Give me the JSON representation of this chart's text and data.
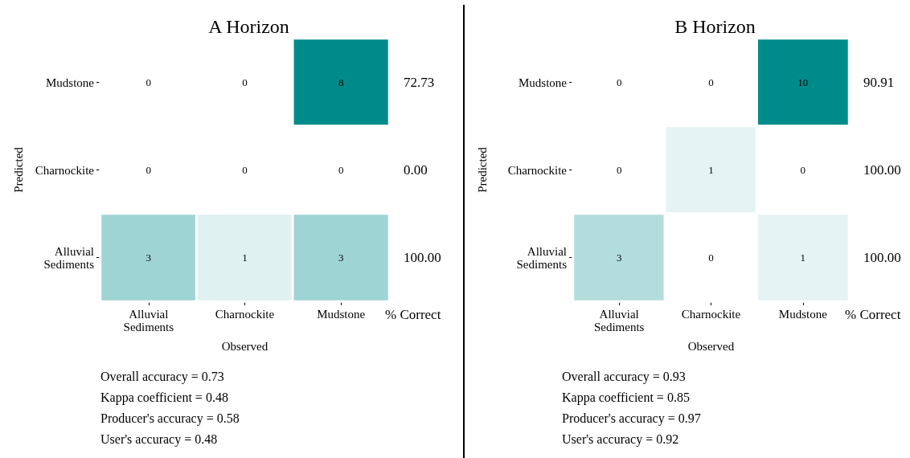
{
  "chart_data": [
    {
      "type": "heatmap",
      "title": "A Horizon",
      "xlabel": "Observed",
      "ylabel": "Predicted",
      "y2label": "% Correct",
      "color": "#008b8b",
      "categories": [
        "Alluvial\nSediments",
        "Charnockite",
        "Mudstone"
      ],
      "y_categories": [
        "Mudstone",
        "Charnockite",
        "Alluvial\nSediments"
      ],
      "y2_categories": [
        "72.73",
        "0.00",
        "100.00"
      ],
      "cells": [
        [
          0,
          0,
          8
        ],
        [
          0,
          0,
          0
        ],
        [
          3,
          1,
          3
        ]
      ],
      "data_labels": true,
      "annotations": [
        "Overall accuracy = 0.73",
        "Kappa coefficient = 0.48",
        "Producer's accuracy = 0.58",
        "User's accuracy = 0.48"
      ]
    },
    {
      "type": "heatmap",
      "title": "B Horizon",
      "xlabel": "Observed",
      "ylabel": "Predicted",
      "y2label": "% Correct",
      "color": "#008b8b",
      "categories": [
        "Alluvial\nSediments",
        "Charnockite",
        "Mudstone"
      ],
      "y_categories": [
        "Mudstone",
        "Charnockite",
        "Alluvial\nSediments"
      ],
      "y2_categories": [
        "90.91",
        "100.00",
        "100.00"
      ],
      "cells": [
        [
          0,
          0,
          10
        ],
        [
          0,
          1,
          0
        ],
        [
          3,
          0,
          1
        ]
      ],
      "data_labels": true,
      "annotations": [
        "Overall accuracy = 0.93",
        "Kappa coefficient = 0.85",
        "Producer's accuracy = 0.97",
        "User's accuracy = 0.92"
      ]
    }
  ]
}
